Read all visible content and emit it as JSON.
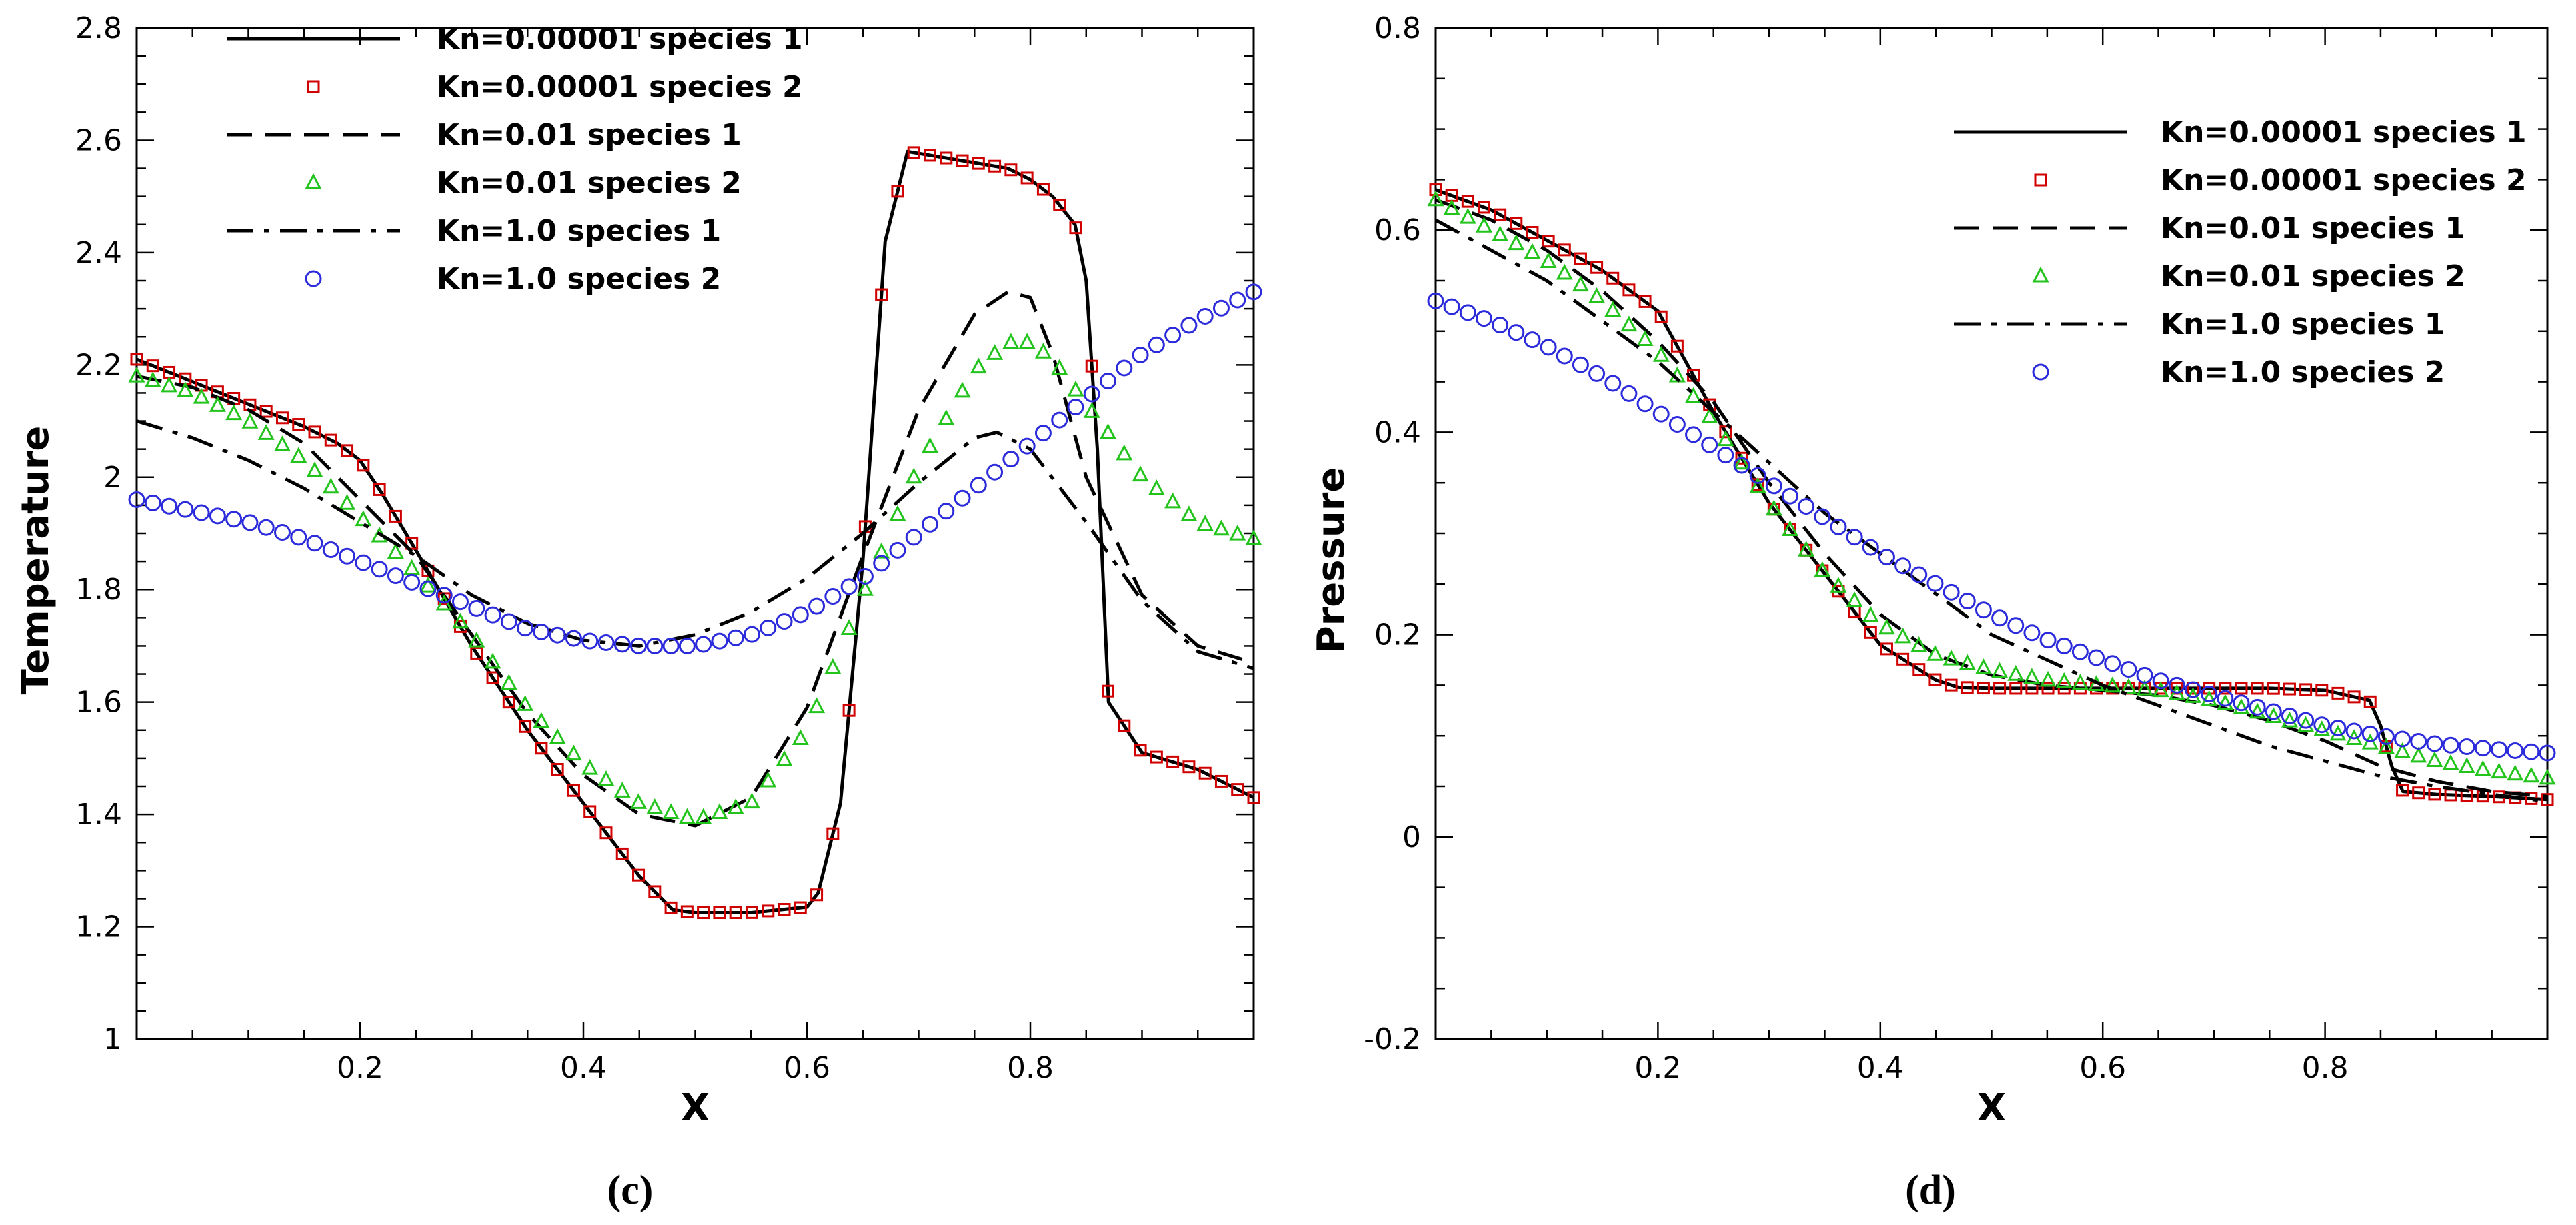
{
  "figure": {
    "panel_labels": [
      "(c)",
      "(d)"
    ]
  },
  "styles": {
    "line_color": "#000000",
    "red": "#d10000",
    "green": "#22c41c",
    "blue": "#2b2bdc"
  },
  "chart_data": [
    {
      "type": "line",
      "title": "",
      "xlabel": "X",
      "ylabel": "Temperature",
      "xlim": [
        0,
        1
      ],
      "ylim": [
        1,
        2.8
      ],
      "xticks": [
        0.2,
        0.4,
        0.6,
        0.8
      ],
      "xtick_labels": [
        "0.2",
        "0.4",
        "0.6",
        "0.8"
      ],
      "yticks": [
        1,
        1.2,
        1.4,
        1.6,
        1.8,
        2,
        2.2,
        2.4,
        2.6,
        2.8
      ],
      "ytick_labels": [
        "1",
        "1.2",
        "1.4",
        "1.6",
        "1.8",
        "2",
        "2.2",
        "2.4",
        "2.6",
        "2.8"
      ],
      "legend_position": "top-left",
      "series": [
        {
          "name": "Kn=0.00001 species 1",
          "style": "solid",
          "x": [
            0.0,
            0.05,
            0.1,
            0.15,
            0.18,
            0.2,
            0.22,
            0.25,
            0.3,
            0.35,
            0.4,
            0.45,
            0.48,
            0.5,
            0.55,
            0.6,
            0.61,
            0.63,
            0.65,
            0.67,
            0.69,
            0.72,
            0.75,
            0.78,
            0.8,
            0.82,
            0.84,
            0.85,
            0.86,
            0.87,
            0.9,
            0.95,
            1.0
          ],
          "y": [
            2.21,
            2.17,
            2.13,
            2.09,
            2.06,
            2.03,
            1.97,
            1.87,
            1.7,
            1.55,
            1.42,
            1.29,
            1.23,
            1.225,
            1.225,
            1.235,
            1.26,
            1.42,
            1.85,
            2.42,
            2.58,
            2.57,
            2.56,
            2.55,
            2.53,
            2.5,
            2.45,
            2.35,
            2.05,
            1.6,
            1.51,
            1.48,
            1.43
          ]
        },
        {
          "name": "Kn=0.00001 species 2",
          "style": "marker",
          "marker": "square",
          "x": [
            0.0,
            0.05,
            0.1,
            0.15,
            0.18,
            0.2,
            0.22,
            0.25,
            0.3,
            0.35,
            0.4,
            0.45,
            0.48,
            0.5,
            0.55,
            0.6,
            0.61,
            0.63,
            0.65,
            0.67,
            0.69,
            0.72,
            0.75,
            0.78,
            0.8,
            0.82,
            0.84,
            0.85,
            0.86,
            0.87,
            0.9,
            0.95,
            1.0
          ],
          "y": [
            2.21,
            2.17,
            2.13,
            2.09,
            2.06,
            2.03,
            1.97,
            1.87,
            1.7,
            1.55,
            1.42,
            1.29,
            1.23,
            1.225,
            1.225,
            1.235,
            1.26,
            1.42,
            1.85,
            2.42,
            2.58,
            2.57,
            2.56,
            2.55,
            2.53,
            2.5,
            2.45,
            2.35,
            2.05,
            1.6,
            1.51,
            1.48,
            1.43
          ]
        },
        {
          "name": "Kn=0.01 species 1",
          "style": "dashed",
          "x": [
            0.0,
            0.05,
            0.1,
            0.15,
            0.2,
            0.25,
            0.3,
            0.35,
            0.4,
            0.45,
            0.5,
            0.55,
            0.6,
            0.65,
            0.7,
            0.75,
            0.78,
            0.8,
            0.82,
            0.85,
            0.9,
            0.95,
            1.0
          ],
          "y": [
            2.18,
            2.16,
            2.12,
            2.06,
            1.96,
            1.86,
            1.72,
            1.58,
            1.47,
            1.4,
            1.38,
            1.43,
            1.59,
            1.86,
            2.12,
            2.29,
            2.33,
            2.32,
            2.22,
            2.0,
            1.79,
            1.7,
            1.67
          ]
        },
        {
          "name": "Kn=0.01 species 2",
          "style": "marker",
          "marker": "triangle",
          "x": [
            0.0,
            0.05,
            0.1,
            0.15,
            0.2,
            0.25,
            0.3,
            0.35,
            0.4,
            0.45,
            0.5,
            0.55,
            0.6,
            0.65,
            0.7,
            0.75,
            0.78,
            0.8,
            0.82,
            0.85,
            0.9,
            0.95,
            1.0
          ],
          "y": [
            2.18,
            2.15,
            2.1,
            2.03,
            1.93,
            1.83,
            1.72,
            1.59,
            1.49,
            1.42,
            1.39,
            1.42,
            1.55,
            1.79,
            2.02,
            2.19,
            2.24,
            2.24,
            2.21,
            2.13,
            2.0,
            1.92,
            1.89
          ]
        },
        {
          "name": "Kn=1.0 species 1",
          "style": "dashdot",
          "x": [
            0.0,
            0.05,
            0.1,
            0.15,
            0.2,
            0.25,
            0.3,
            0.35,
            0.4,
            0.45,
            0.5,
            0.55,
            0.6,
            0.65,
            0.7,
            0.75,
            0.77,
            0.8,
            0.85,
            0.9,
            0.95,
            1.0
          ],
          "y": [
            2.1,
            2.07,
            2.03,
            1.98,
            1.92,
            1.86,
            1.79,
            1.74,
            1.71,
            1.7,
            1.72,
            1.76,
            1.82,
            1.9,
            1.99,
            2.07,
            2.08,
            2.05,
            1.92,
            1.78,
            1.69,
            1.66
          ]
        },
        {
          "name": "Kn=1.0 species 2",
          "style": "marker",
          "marker": "circle",
          "x": [
            0.0,
            0.05,
            0.1,
            0.15,
            0.2,
            0.25,
            0.3,
            0.35,
            0.4,
            0.45,
            0.5,
            0.55,
            0.6,
            0.65,
            0.7,
            0.75,
            0.8,
            0.85,
            0.9,
            0.95,
            1.0
          ],
          "y": [
            1.96,
            1.94,
            1.92,
            1.89,
            1.85,
            1.81,
            1.77,
            1.73,
            1.71,
            1.7,
            1.7,
            1.72,
            1.76,
            1.82,
            1.9,
            1.98,
            2.06,
            2.14,
            2.22,
            2.28,
            2.33
          ]
        }
      ]
    },
    {
      "type": "line",
      "title": "",
      "xlabel": "X",
      "ylabel": "Pressure",
      "xlim": [
        0,
        1
      ],
      "ylim": [
        -0.2,
        0.8
      ],
      "xticks": [
        0.2,
        0.4,
        0.6,
        0.8
      ],
      "xtick_labels": [
        "0.2",
        "0.4",
        "0.6",
        "0.8"
      ],
      "yticks": [
        -0.2,
        0,
        0.2,
        0.4,
        0.6,
        0.8
      ],
      "ytick_labels": [
        "-0.2",
        "0",
        "0.2",
        "0.4",
        "0.6",
        "0.8"
      ],
      "legend_position": "top-right",
      "series": [
        {
          "name": "Kn=0.00001 species 1",
          "style": "solid",
          "x": [
            0.0,
            0.05,
            0.1,
            0.15,
            0.2,
            0.22,
            0.25,
            0.3,
            0.35,
            0.4,
            0.45,
            0.47,
            0.5,
            0.55,
            0.6,
            0.65,
            0.7,
            0.75,
            0.8,
            0.84,
            0.85,
            0.86,
            0.87,
            0.9,
            0.95,
            1.0
          ],
          "y": [
            0.64,
            0.62,
            0.59,
            0.56,
            0.52,
            0.48,
            0.42,
            0.33,
            0.26,
            0.19,
            0.155,
            0.148,
            0.147,
            0.147,
            0.147,
            0.147,
            0.147,
            0.147,
            0.145,
            0.135,
            0.11,
            0.07,
            0.045,
            0.042,
            0.04,
            0.037
          ]
        },
        {
          "name": "Kn=0.00001 species 2",
          "style": "marker",
          "marker": "square",
          "x": [
            0.0,
            0.05,
            0.1,
            0.15,
            0.2,
            0.22,
            0.25,
            0.3,
            0.35,
            0.4,
            0.45,
            0.47,
            0.5,
            0.55,
            0.6,
            0.65,
            0.7,
            0.75,
            0.8,
            0.84,
            0.85,
            0.86,
            0.87,
            0.9,
            0.95,
            1.0
          ],
          "y": [
            0.64,
            0.62,
            0.59,
            0.56,
            0.52,
            0.48,
            0.42,
            0.33,
            0.26,
            0.19,
            0.155,
            0.148,
            0.147,
            0.147,
            0.147,
            0.147,
            0.147,
            0.147,
            0.145,
            0.135,
            0.11,
            0.07,
            0.045,
            0.042,
            0.04,
            0.037
          ]
        },
        {
          "name": "Kn=0.01 species 1",
          "style": "dashed",
          "x": [
            0.0,
            0.05,
            0.1,
            0.15,
            0.2,
            0.25,
            0.3,
            0.35,
            0.4,
            0.45,
            0.5,
            0.55,
            0.6,
            0.65,
            0.7,
            0.75,
            0.8,
            0.85,
            0.9,
            0.95,
            1.0
          ],
          "y": [
            0.63,
            0.61,
            0.58,
            0.54,
            0.49,
            0.43,
            0.35,
            0.28,
            0.22,
            0.18,
            0.16,
            0.15,
            0.145,
            0.14,
            0.13,
            0.115,
            0.095,
            0.07,
            0.055,
            0.045,
            0.04
          ]
        },
        {
          "name": "Kn=0.01 species 2",
          "style": "marker",
          "marker": "triangle",
          "x": [
            0.0,
            0.05,
            0.1,
            0.15,
            0.2,
            0.25,
            0.3,
            0.35,
            0.4,
            0.45,
            0.5,
            0.55,
            0.6,
            0.65,
            0.7,
            0.75,
            0.8,
            0.85,
            0.9,
            0.95,
            1.0
          ],
          "y": [
            0.63,
            0.6,
            0.57,
            0.53,
            0.48,
            0.41,
            0.33,
            0.26,
            0.21,
            0.18,
            0.165,
            0.155,
            0.15,
            0.145,
            0.135,
            0.12,
            0.105,
            0.09,
            0.075,
            0.065,
            0.058
          ]
        },
        {
          "name": "Kn=1.0 species 1",
          "style": "dashdot",
          "x": [
            0.0,
            0.05,
            0.1,
            0.15,
            0.2,
            0.25,
            0.3,
            0.35,
            0.4,
            0.45,
            0.5,
            0.55,
            0.6,
            0.65,
            0.7,
            0.75,
            0.8,
            0.85,
            0.9,
            0.95,
            1.0
          ],
          "y": [
            0.61,
            0.58,
            0.55,
            0.51,
            0.47,
            0.42,
            0.37,
            0.32,
            0.28,
            0.24,
            0.2,
            0.175,
            0.15,
            0.13,
            0.11,
            0.09,
            0.075,
            0.06,
            0.05,
            0.042,
            0.035
          ]
        },
        {
          "name": "Kn=1.0 species 2",
          "style": "marker",
          "marker": "circle",
          "x": [
            0.0,
            0.05,
            0.1,
            0.15,
            0.2,
            0.25,
            0.3,
            0.35,
            0.4,
            0.45,
            0.5,
            0.55,
            0.6,
            0.65,
            0.7,
            0.75,
            0.8,
            0.85,
            0.9,
            0.95,
            1.0
          ],
          "y": [
            0.53,
            0.51,
            0.485,
            0.455,
            0.42,
            0.385,
            0.35,
            0.315,
            0.28,
            0.25,
            0.22,
            0.195,
            0.175,
            0.155,
            0.14,
            0.125,
            0.11,
            0.1,
            0.092,
            0.087,
            0.083
          ]
        }
      ]
    }
  ]
}
